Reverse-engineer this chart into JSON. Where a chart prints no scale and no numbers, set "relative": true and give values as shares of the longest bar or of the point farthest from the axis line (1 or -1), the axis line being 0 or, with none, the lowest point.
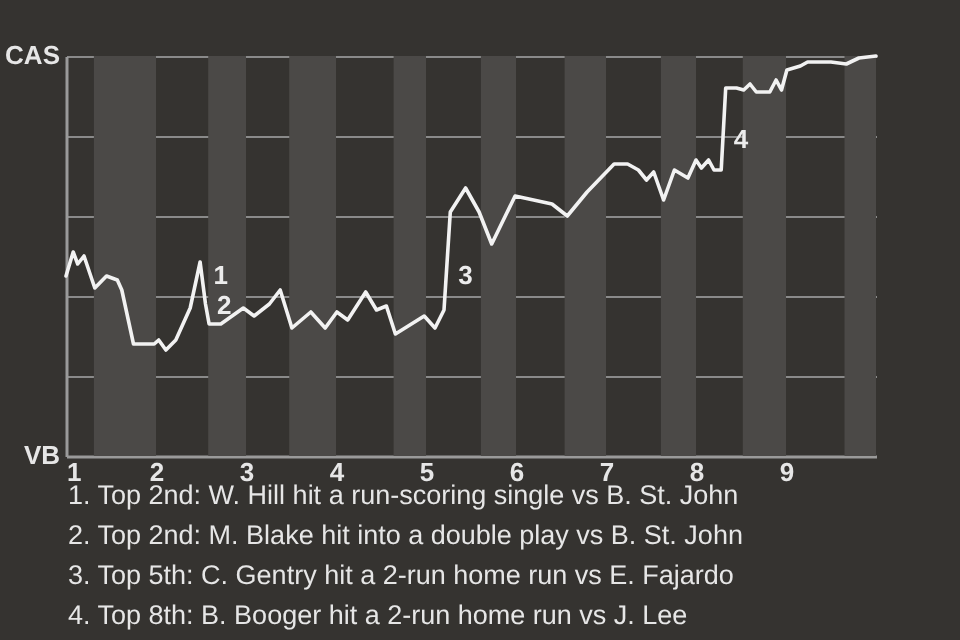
{
  "chart_data": {
    "type": "line",
    "x": [
      1,
      1.08,
      1.13,
      1.2,
      1.32,
      1.45,
      1.57,
      1.62,
      1.75,
      1.98,
      2.03,
      2.11,
      2.22,
      2.38,
      2.49,
      2.55,
      2.59,
      2.72,
      2.97,
      3.09,
      3.26,
      3.38,
      3.51,
      3.72,
      3.88,
      4.01,
      4.13,
      4.33,
      4.45,
      4.56,
      4.66,
      4.98,
      5.1,
      5.2,
      5.27,
      5.44,
      5.59,
      5.73,
      5.99,
      6.4,
      6.57,
      6.79,
      7.09,
      7.24,
      7.36,
      7.45,
      7.53,
      7.64,
      7.76,
      7.91,
      8,
      8.06,
      8.14,
      8.2,
      8.28,
      8.33,
      8.45,
      8.53,
      8.6,
      8.67,
      8.82,
      8.89,
      8.95,
      9.01,
      9.16,
      9.24,
      9.5,
      9.67,
      9.81,
      10
    ],
    "series": [
      {
        "color": "#f2f2f2",
        "values": [
          0.45,
          0.51,
          0.48,
          0.5,
          0.42,
          0.45,
          0.44,
          0.415,
          0.28,
          0.28,
          0.29,
          0.265,
          0.29,
          0.37,
          0.485,
          0.38,
          0.33,
          0.33,
          0.37,
          0.35,
          0.38,
          0.415,
          0.32,
          0.36,
          0.32,
          0.36,
          0.34,
          0.41,
          0.365,
          0.375,
          0.305,
          0.35,
          0.32,
          0.365,
          0.61,
          0.67,
          0.61,
          0.53,
          0.65,
          0.63,
          0.6,
          0.66,
          0.73,
          0.73,
          0.715,
          0.69,
          0.71,
          0.64,
          0.715,
          0.695,
          0.74,
          0.72,
          0.74,
          0.715,
          0.715,
          0.92,
          0.92,
          0.915,
          0.93,
          0.91,
          0.91,
          0.94,
          0.915,
          0.965,
          0.975,
          0.985,
          0.985,
          0.98,
          0.995,
          1
        ]
      }
    ],
    "relative": true,
    "xlim": [
      1,
      10
    ],
    "xticks": [
      1,
      2,
      3,
      4,
      5,
      6,
      7,
      8,
      9
    ],
    "grid": "y",
    "line_style": "solid",
    "bands": [
      {
        "axis": "x",
        "from": 1.31,
        "to": 2,
        "color": "#4b4947"
      },
      {
        "axis": "x",
        "from": 2.58,
        "to": 3,
        "color": "#4b4947"
      },
      {
        "axis": "x",
        "from": 3.48,
        "to": 4,
        "color": "#4b4947"
      },
      {
        "axis": "x",
        "from": 4.64,
        "to": 5,
        "color": "#4b4947"
      },
      {
        "axis": "x",
        "from": 5.61,
        "to": 6,
        "color": "#4b4947"
      },
      {
        "axis": "x",
        "from": 6.54,
        "to": 7,
        "color": "#4b4947"
      },
      {
        "axis": "x",
        "from": 7.61,
        "to": 8,
        "color": "#4b4947"
      },
      {
        "axis": "x",
        "from": 8.52,
        "to": 9,
        "color": "#4b4947"
      },
      {
        "axis": "x",
        "from": 9.65,
        "to": 10,
        "color": "#4b4947"
      }
    ],
    "annotations": [
      "CAS",
      "VB",
      {
        "text": "1",
        "x": 2.55,
        "y": 0.45
      },
      {
        "text": "2",
        "x": 2.59,
        "y": 0.375
      },
      {
        "text": "3",
        "x": 5.27,
        "y": 0.45
      },
      {
        "text": "4",
        "x": 8.33,
        "y": 0.79
      },
      "1. Top 2nd: W. Hill hit a run-scoring single vs B. St. John",
      "2. Top 2nd: M. Blake hit into a double play vs B. St. John",
      "3. Top 5th: C. Gentry hit a 2-run home run vs E. Fajardo",
      "4. Top 8th: B. Booger hit a 2-run home run vs J. Lee"
    ]
  }
}
